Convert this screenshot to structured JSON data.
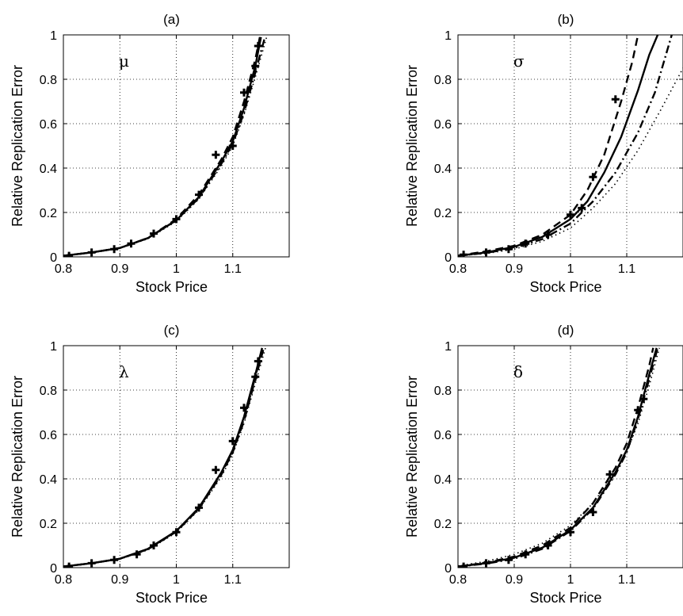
{
  "chart_data": [
    {
      "type": "line",
      "title": "(a)",
      "annotation": "μ",
      "xlabel": "Stock Price",
      "ylabel": "Relative Replication Error",
      "xlim": [
        0.8,
        1.2
      ],
      "ylim": [
        0,
        1
      ],
      "xticks": [
        "0.8",
        "0.9",
        "1",
        "1.1"
      ],
      "yticks": [
        "0",
        "0.2",
        "0.4",
        "0.6",
        "0.8",
        "1"
      ],
      "grid": true,
      "series": [
        {
          "style": "solid",
          "x": [
            0.8,
            0.85,
            0.9,
            0.95,
            1.0,
            1.04,
            1.08,
            1.1,
            1.12,
            1.14,
            1.15
          ],
          "y": [
            0.005,
            0.02,
            0.04,
            0.085,
            0.165,
            0.27,
            0.43,
            0.52,
            0.67,
            0.86,
            0.99
          ]
        },
        {
          "style": "dashed",
          "x": [
            0.8,
            0.85,
            0.9,
            0.95,
            1.0,
            1.04,
            1.08,
            1.1,
            1.12,
            1.14,
            1.148
          ],
          "y": [
            0.005,
            0.02,
            0.04,
            0.085,
            0.17,
            0.28,
            0.44,
            0.54,
            0.7,
            0.89,
            0.99
          ]
        },
        {
          "style": "dashdot",
          "x": [
            0.8,
            0.85,
            0.9,
            0.95,
            1.0,
            1.04,
            1.08,
            1.1,
            1.12,
            1.14,
            1.157
          ],
          "y": [
            0.005,
            0.02,
            0.04,
            0.085,
            0.165,
            0.265,
            0.42,
            0.51,
            0.65,
            0.83,
            0.99
          ]
        },
        {
          "style": "dotted",
          "x": [
            0.8,
            0.85,
            0.9,
            0.95,
            1.0,
            1.04,
            1.08,
            1.1,
            1.12,
            1.14,
            1.16
          ],
          "y": [
            0.005,
            0.02,
            0.038,
            0.082,
            0.16,
            0.26,
            0.41,
            0.5,
            0.64,
            0.81,
            0.99
          ]
        },
        {
          "style": "markers",
          "x": [
            0.81,
            0.85,
            0.89,
            0.92,
            0.96,
            1.0,
            1.04,
            1.07,
            1.1,
            1.12,
            1.14,
            1.145
          ],
          "y": [
            0.005,
            0.02,
            0.035,
            0.06,
            0.105,
            0.17,
            0.28,
            0.46,
            0.5,
            0.74,
            0.86,
            0.95
          ]
        }
      ]
    },
    {
      "type": "line",
      "title": "(b)",
      "annotation": "σ",
      "xlabel": "Stock Price",
      "ylabel": "Relative Replication Error",
      "xlim": [
        0.8,
        1.2
      ],
      "ylim": [
        0,
        1
      ],
      "xticks": [
        "0.8",
        "0.9",
        "1",
        "1.1"
      ],
      "yticks": [
        "0",
        "0.2",
        "0.4",
        "0.6",
        "0.8",
        "1"
      ],
      "grid": true,
      "series": [
        {
          "style": "solid",
          "x": [
            0.8,
            0.85,
            0.9,
            0.95,
            1.0,
            1.03,
            1.06,
            1.09,
            1.12,
            1.14,
            1.155
          ],
          "y": [
            0.005,
            0.02,
            0.045,
            0.09,
            0.17,
            0.25,
            0.38,
            0.54,
            0.75,
            0.91,
            1.0
          ]
        },
        {
          "style": "dashed",
          "x": [
            0.8,
            0.85,
            0.9,
            0.95,
            1.0,
            1.03,
            1.06,
            1.09,
            1.11,
            1.12
          ],
          "y": [
            0.005,
            0.025,
            0.05,
            0.1,
            0.19,
            0.3,
            0.46,
            0.7,
            0.88,
            1.0
          ]
        },
        {
          "style": "dashdot",
          "x": [
            0.8,
            0.85,
            0.9,
            0.95,
            1.0,
            1.04,
            1.08,
            1.12,
            1.15,
            1.18
          ],
          "y": [
            0.005,
            0.018,
            0.04,
            0.08,
            0.15,
            0.25,
            0.38,
            0.56,
            0.74,
            1.0
          ]
        },
        {
          "style": "dotted",
          "x": [
            0.8,
            0.85,
            0.9,
            0.95,
            1.0,
            1.04,
            1.08,
            1.12,
            1.16,
            1.2
          ],
          "y": [
            0.005,
            0.015,
            0.035,
            0.07,
            0.13,
            0.22,
            0.33,
            0.48,
            0.66,
            0.85
          ]
        },
        {
          "style": "markers",
          "x": [
            0.81,
            0.85,
            0.89,
            0.92,
            0.96,
            1.0,
            1.02,
            1.04,
            1.08
          ],
          "y": [
            0.01,
            0.02,
            0.035,
            0.06,
            0.1,
            0.19,
            0.22,
            0.36,
            0.71
          ]
        }
      ]
    },
    {
      "type": "line",
      "title": "(c)",
      "annotation": "λ",
      "xlabel": "Stock Price",
      "ylabel": "Relative Replication Error",
      "xlim": [
        0.8,
        1.2
      ],
      "ylim": [
        0,
        1
      ],
      "xticks": [
        "0.8",
        "0.9",
        "1",
        "1.1"
      ],
      "yticks": [
        "0",
        "0.2",
        "0.4",
        "0.6",
        "0.8",
        "1"
      ],
      "grid": true,
      "series": [
        {
          "style": "solid",
          "x": [
            0.8,
            0.85,
            0.9,
            0.95,
            1.0,
            1.04,
            1.08,
            1.1,
            1.12,
            1.14,
            1.152
          ],
          "y": [
            0.005,
            0.02,
            0.04,
            0.085,
            0.165,
            0.27,
            0.43,
            0.53,
            0.68,
            0.87,
            0.99
          ]
        },
        {
          "style": "dashed",
          "x": [
            0.8,
            0.85,
            0.9,
            0.95,
            1.0,
            1.04,
            1.08,
            1.1,
            1.12,
            1.14,
            1.155
          ],
          "y": [
            0.005,
            0.02,
            0.04,
            0.083,
            0.162,
            0.265,
            0.42,
            0.52,
            0.66,
            0.85,
            0.99
          ]
        },
        {
          "style": "dashdot",
          "x": [
            0.8,
            0.85,
            0.9,
            0.95,
            1.0,
            1.04,
            1.08,
            1.1,
            1.12,
            1.14,
            1.153
          ],
          "y": [
            0.005,
            0.02,
            0.04,
            0.084,
            0.164,
            0.268,
            0.425,
            0.525,
            0.67,
            0.86,
            0.99
          ]
        },
        {
          "style": "dotted",
          "x": [
            0.8,
            0.85,
            0.9,
            0.95,
            1.0,
            1.04,
            1.08,
            1.1,
            1.12,
            1.14,
            1.158
          ],
          "y": [
            0.005,
            0.02,
            0.038,
            0.08,
            0.158,
            0.26,
            0.41,
            0.51,
            0.65,
            0.83,
            0.99
          ]
        },
        {
          "style": "markers",
          "x": [
            0.81,
            0.85,
            0.89,
            0.93,
            0.96,
            1.0,
            1.04,
            1.07,
            1.1,
            1.12,
            1.14,
            1.145
          ],
          "y": [
            0.005,
            0.02,
            0.035,
            0.06,
            0.1,
            0.16,
            0.27,
            0.44,
            0.57,
            0.72,
            0.86,
            0.93
          ]
        }
      ]
    },
    {
      "type": "line",
      "title": "(d)",
      "annotation": "δ",
      "xlabel": "Stock Price",
      "ylabel": "Relative Replication Error",
      "xlim": [
        0.8,
        1.2
      ],
      "ylim": [
        0,
        1
      ],
      "xticks": [
        "0.8",
        "0.9",
        "1",
        "1.1"
      ],
      "yticks": [
        "0",
        "0.2",
        "0.4",
        "0.6",
        "0.8",
        "1"
      ],
      "grid": true,
      "series": [
        {
          "style": "solid",
          "x": [
            0.8,
            0.85,
            0.9,
            0.95,
            1.0,
            1.04,
            1.08,
            1.1,
            1.12,
            1.14,
            1.153
          ],
          "y": [
            0.005,
            0.02,
            0.045,
            0.09,
            0.17,
            0.27,
            0.43,
            0.53,
            0.68,
            0.87,
            0.99
          ]
        },
        {
          "style": "dashed",
          "x": [
            0.8,
            0.85,
            0.9,
            0.95,
            1.0,
            1.04,
            1.08,
            1.1,
            1.12,
            1.14,
            1.147
          ],
          "y": [
            0.005,
            0.022,
            0.05,
            0.1,
            0.18,
            0.29,
            0.45,
            0.56,
            0.72,
            0.91,
            0.99
          ]
        },
        {
          "style": "dashdot",
          "x": [
            0.8,
            0.85,
            0.9,
            0.95,
            1.0,
            1.04,
            1.08,
            1.1,
            1.12,
            1.14,
            1.155
          ],
          "y": [
            0.005,
            0.018,
            0.04,
            0.085,
            0.165,
            0.265,
            0.42,
            0.52,
            0.67,
            0.85,
            0.99
          ]
        },
        {
          "style": "dotted",
          "x": [
            0.8,
            0.85,
            0.9,
            0.95,
            1.0,
            1.04,
            1.08,
            1.1,
            1.12,
            1.14,
            1.158
          ],
          "y": [
            0.008,
            0.028,
            0.06,
            0.11,
            0.19,
            0.29,
            0.43,
            0.52,
            0.65,
            0.82,
            0.99
          ]
        },
        {
          "style": "markers",
          "x": [
            0.81,
            0.85,
            0.89,
            0.92,
            0.96,
            1.0,
            1.04,
            1.07,
            1.12,
            1.13
          ],
          "y": [
            0.005,
            0.02,
            0.035,
            0.06,
            0.1,
            0.16,
            0.25,
            0.42,
            0.71,
            0.76
          ]
        }
      ]
    }
  ]
}
